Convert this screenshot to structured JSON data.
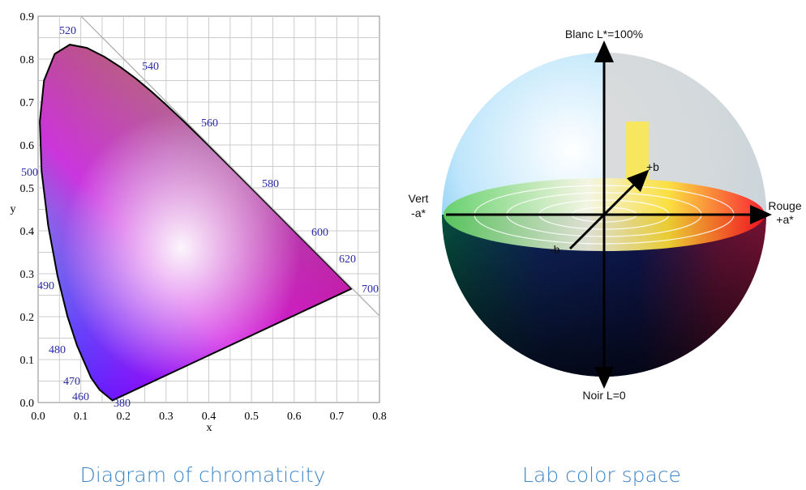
{
  "chromaticity": {
    "caption": "Diagram of chromaticity",
    "x_label": "x",
    "y_label": "y",
    "xticks": [
      "0.0",
      "0.1",
      "0.2",
      "0.3",
      "0.4",
      "0.5",
      "0.6",
      "0.7",
      "0.8"
    ],
    "yticks": [
      "0.0",
      "0.1",
      "0.2",
      "0.3",
      "0.4",
      "0.5",
      "0.6",
      "0.7",
      "0.8",
      "0.9"
    ],
    "wavelengths": [
      "380",
      "460",
      "470",
      "480",
      "490",
      "500",
      "520",
      "540",
      "560",
      "580",
      "600",
      "620",
      "700"
    ]
  },
  "lab": {
    "caption": "Lab color space",
    "top": "Blanc L*=100%",
    "bottom": "Noir L=0",
    "left_name": "Vert",
    "left_axis": "-a*",
    "right_name": "Rouge",
    "right_axis": "+a*",
    "plus_b": "+b",
    "minus_b": "-b"
  }
}
